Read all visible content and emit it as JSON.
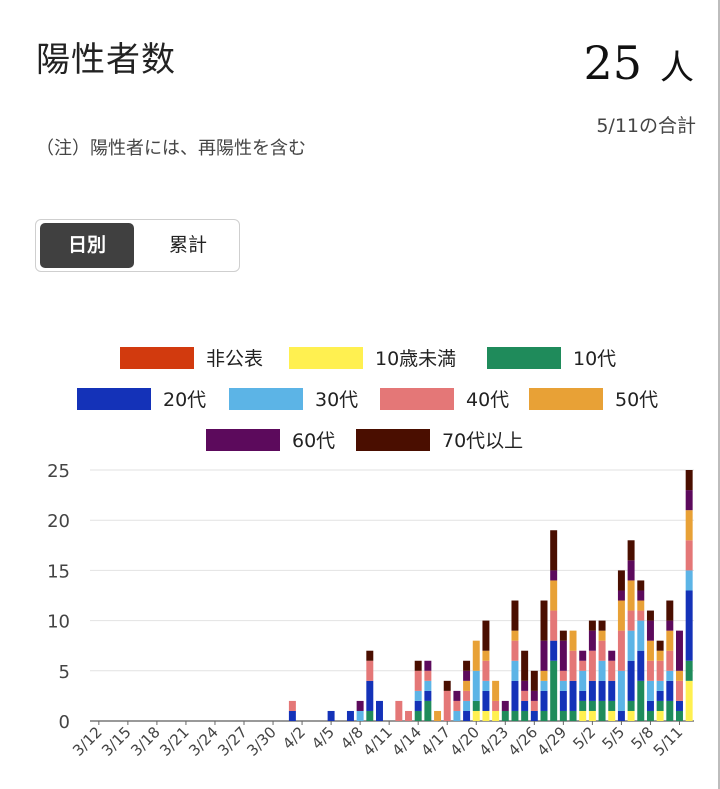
{
  "header": {
    "title": "陽性者数",
    "total_value": "25",
    "total_unit": "人",
    "total_date": "5/11の合計",
    "note": "（注）陽性者には、再陽性を含む"
  },
  "toggle": {
    "daily_label": "日別",
    "cumulative_label": "累計",
    "selected": "日別"
  },
  "chart_data": {
    "type": "bar",
    "stacked": true,
    "title": "",
    "xlabel": "",
    "ylabel": "",
    "ylim": [
      0,
      25
    ],
    "yticks": [
      0,
      5,
      10,
      15,
      20,
      25
    ],
    "grid": true,
    "legend_position": "top",
    "tick_labels": [
      "3/12",
      "3/15",
      "3/18",
      "3/21",
      "3/24",
      "3/27",
      "3/30",
      "4/2",
      "4/5",
      "4/8",
      "4/11",
      "4/14",
      "4/17",
      "4/20",
      "4/23",
      "4/26",
      "4/29",
      "5/2",
      "5/5",
      "5/8",
      "5/11"
    ],
    "series_order": [
      "非公表",
      "10歳未満",
      "10代",
      "20代",
      "30代",
      "40代",
      "50代",
      "60代",
      "70代以上"
    ],
    "colors": {
      "非公表": "#d23a0e",
      "10歳未満": "#fff050",
      "10代": "#1f8b5b",
      "20代": "#1432b8",
      "30代": "#5cb4e6",
      "40代": "#e47777",
      "50代": "#e8a136",
      "60代": "#5c0a5c",
      "70代以上": "#4a0e00"
    },
    "x_start": "3/12",
    "days": [
      {
        "date": "3/12",
        "v": {}
      },
      {
        "date": "3/13",
        "v": {}
      },
      {
        "date": "3/14",
        "v": {}
      },
      {
        "date": "3/15",
        "v": {}
      },
      {
        "date": "3/16",
        "v": {}
      },
      {
        "date": "3/17",
        "v": {}
      },
      {
        "date": "3/18",
        "v": {}
      },
      {
        "date": "3/19",
        "v": {}
      },
      {
        "date": "3/20",
        "v": {}
      },
      {
        "date": "3/21",
        "v": {}
      },
      {
        "date": "3/22",
        "v": {}
      },
      {
        "date": "3/23",
        "v": {}
      },
      {
        "date": "3/24",
        "v": {}
      },
      {
        "date": "3/25",
        "v": {}
      },
      {
        "date": "3/26",
        "v": {}
      },
      {
        "date": "3/27",
        "v": {}
      },
      {
        "date": "3/28",
        "v": {}
      },
      {
        "date": "3/29",
        "v": {}
      },
      {
        "date": "3/30",
        "v": {}
      },
      {
        "date": "3/31",
        "v": {}
      },
      {
        "date": "4/1",
        "v": {
          "20代": 1,
          "40代": 1
        }
      },
      {
        "date": "4/2",
        "v": {}
      },
      {
        "date": "4/3",
        "v": {}
      },
      {
        "date": "4/4",
        "v": {}
      },
      {
        "date": "4/5",
        "v": {
          "20代": 1
        }
      },
      {
        "date": "4/6",
        "v": {}
      },
      {
        "date": "4/7",
        "v": {
          "20代": 1
        }
      },
      {
        "date": "4/8",
        "v": {
          "30代": 1,
          "60代": 1
        }
      },
      {
        "date": "4/9",
        "v": {
          "10代": 1,
          "20代": 3,
          "40代": 2,
          "70代以上": 1
        }
      },
      {
        "date": "4/10",
        "v": {
          "20代": 2
        }
      },
      {
        "date": "4/11",
        "v": {}
      },
      {
        "date": "4/12",
        "v": {
          "40代": 2
        }
      },
      {
        "date": "4/13",
        "v": {
          "40代": 1
        }
      },
      {
        "date": "4/14",
        "v": {
          "10代": 1,
          "20代": 1,
          "30代": 1,
          "40代": 2,
          "70代以上": 1
        }
      },
      {
        "date": "4/15",
        "v": {
          "10代": 2,
          "20代": 1,
          "30代": 1,
          "40代": 1,
          "60代": 1
        }
      },
      {
        "date": "4/16",
        "v": {
          "50代": 1
        }
      },
      {
        "date": "4/17",
        "v": {
          "40代": 3,
          "70代以上": 1
        }
      },
      {
        "date": "4/18",
        "v": {
          "30代": 1,
          "40代": 1,
          "60代": 1
        }
      },
      {
        "date": "4/19",
        "v": {
          "20代": 1,
          "30代": 1,
          "40代": 1,
          "50代": 1,
          "60代": 1,
          "70代以上": 1
        }
      },
      {
        "date": "4/20",
        "v": {
          "10歳未満": 1,
          "10代": 1,
          "30代": 3,
          "50代": 3
        }
      },
      {
        "date": "4/21",
        "v": {
          "10歳未満": 1,
          "20代": 2,
          "30代": 1,
          "40代": 2,
          "50代": 1,
          "70代以上": 3
        }
      },
      {
        "date": "4/22",
        "v": {
          "10歳未満": 1,
          "40代": 1,
          "50代": 2
        }
      },
      {
        "date": "4/23",
        "v": {
          "10代": 1,
          "60代": 1
        }
      },
      {
        "date": "4/24",
        "v": {
          "10代": 1,
          "20代": 3,
          "30代": 2,
          "40代": 2,
          "50代": 1,
          "70代以上": 3
        }
      },
      {
        "date": "4/25",
        "v": {
          "10代": 1,
          "20代": 1,
          "40代": 1,
          "60代": 1,
          "70代以上": 3
        }
      },
      {
        "date": "4/26",
        "v": {
          "20代": 1,
          "40代": 1,
          "60代": 1,
          "70代以上": 2
        }
      },
      {
        "date": "4/27",
        "v": {
          "10代": 1,
          "20代": 2,
          "30代": 1,
          "50代": 1,
          "60代": 3,
          "70代以上": 4
        }
      },
      {
        "date": "4/28",
        "v": {
          "10代": 6,
          "20代": 2,
          "40代": 3,
          "50代": 3,
          "60代": 1,
          "70代以上": 4
        }
      },
      {
        "date": "4/29",
        "v": {
          "10代": 1,
          "20代": 2,
          "30代": 1,
          "40代": 1,
          "60代": 3,
          "70代以上": 1
        }
      },
      {
        "date": "4/30",
        "v": {
          "10代": 1,
          "20代": 3,
          "40代": 3,
          "50代": 2
        }
      },
      {
        "date": "5/1",
        "v": {
          "10歳未満": 1,
          "10代": 1,
          "20代": 1,
          "30代": 2,
          "40代": 1,
          "60代": 1
        }
      },
      {
        "date": "5/2",
        "v": {
          "10歳未満": 1,
          "10代": 1,
          "20代": 2,
          "40代": 3,
          "60代": 2,
          "70代以上": 1
        }
      },
      {
        "date": "5/3",
        "v": {
          "10代": 2,
          "20代": 2,
          "30代": 2,
          "40代": 2,
          "50代": 1,
          "70代以上": 1
        }
      },
      {
        "date": "5/4",
        "v": {
          "10歳未満": 1,
          "10代": 1,
          "20代": 2,
          "40代": 2,
          "60代": 1
        }
      },
      {
        "date": "5/5",
        "v": {
          "20代": 1,
          "30代": 4,
          "40代": 4,
          "50代": 3,
          "60代": 1,
          "70代以上": 2
        }
      },
      {
        "date": "5/6",
        "v": {
          "10歳未満": 1,
          "10代": 1,
          "20代": 4,
          "30代": 3,
          "40代": 2,
          "50代": 3,
          "60代": 2,
          "70代以上": 2
        }
      },
      {
        "date": "5/7",
        "v": {
          "10代": 4,
          "20代": 3,
          "30代": 3,
          "40代": 1,
          "50代": 1,
          "60代": 1,
          "70代以上": 1
        }
      },
      {
        "date": "5/8",
        "v": {
          "10代": 1,
          "20代": 1,
          "30代": 2,
          "40代": 2,
          "50代": 2,
          "60代": 2,
          "70代以上": 1
        }
      },
      {
        "date": "5/9",
        "v": {
          "10歳未満": 1,
          "10代": 1,
          "20代": 1,
          "30代": 1,
          "40代": 2,
          "50代": 1,
          "70代以上": 1
        }
      },
      {
        "date": "5/10",
        "v": {
          "10代": 2,
          "20代": 2,
          "30代": 1,
          "40代": 2,
          "50代": 2,
          "60代": 1,
          "70代以上": 2
        }
      },
      {
        "date": "5/11_prev",
        "v": {
          "10代": 1,
          "20代": 1,
          "40代": 2,
          "50代": 1,
          "60代": 4
        }
      },
      {
        "date": "5/11",
        "v": {
          "10歳未満": 4,
          "10代": 2,
          "20代": 7,
          "30代": 2,
          "40代": 3,
          "50代": 3,
          "60代": 2,
          "70代以上": 2
        }
      }
    ]
  }
}
